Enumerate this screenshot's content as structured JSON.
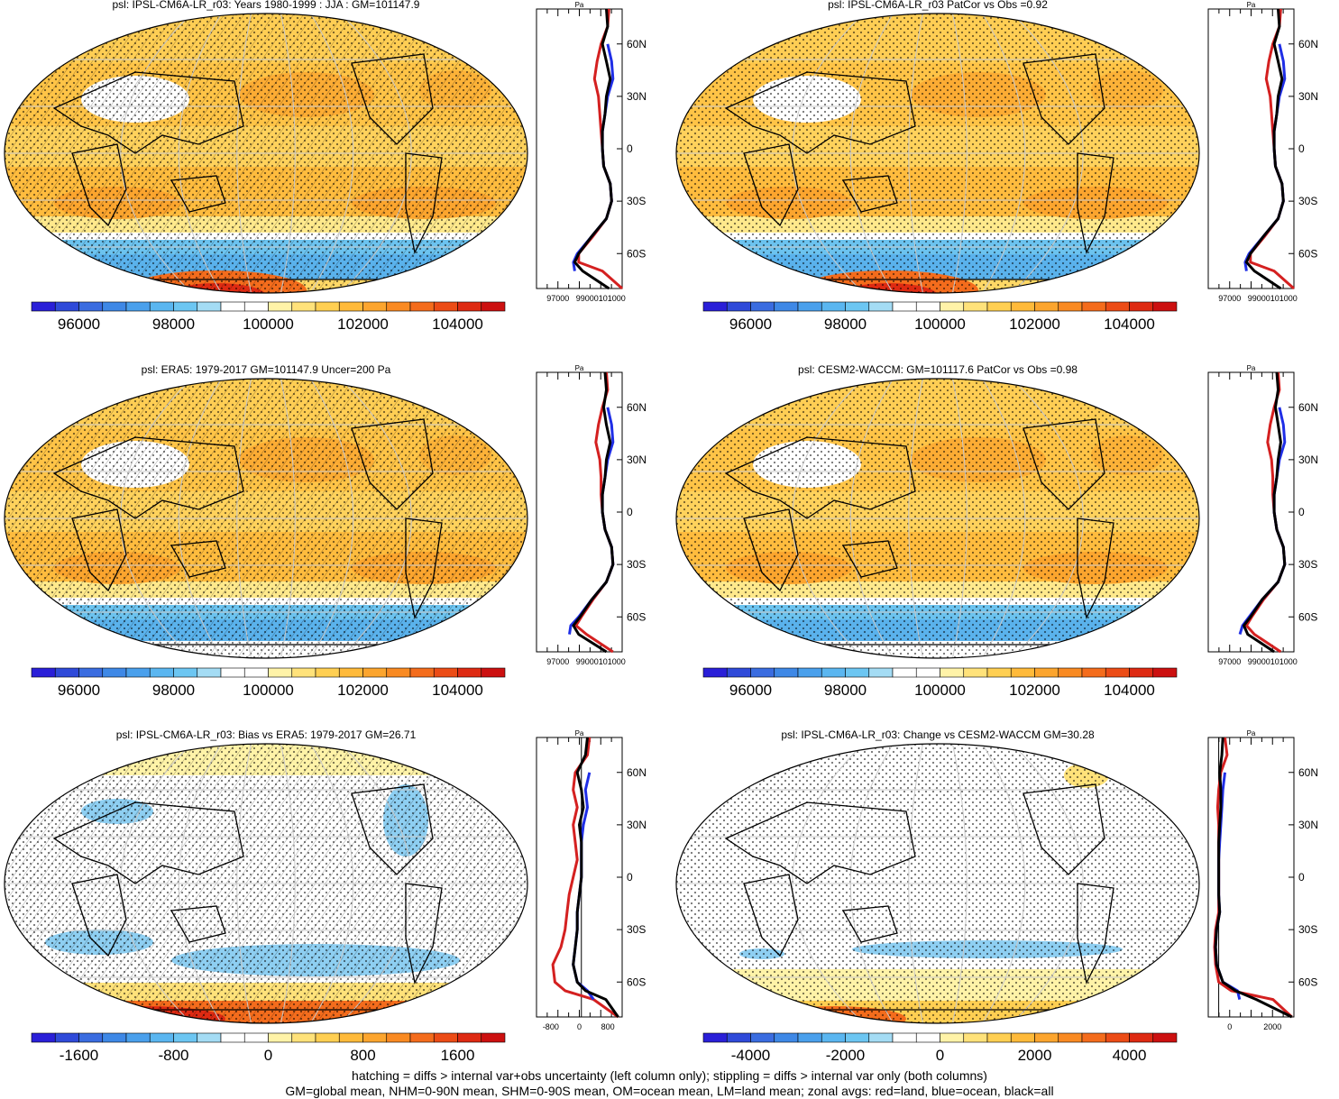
{
  "footer": {
    "line1": "hatching = diffs > internal var+obs uncertainty (left column only); stippling = diffs > internal var only (both columns)",
    "line2": "GM=global mean, NHM=0-90N mean, SHM=0-90S mean, OM=ocean mean, LM=land mean; zonal avgs: red=land, blue=ocean, black=all"
  },
  "panels": [
    {
      "title": "psl: IPSL-CM6A-LR_r03: Years 1980-1999 : JJA : GM=101147.9",
      "kind": "mean",
      "hatch": true,
      "side_unit": "Pa",
      "side_ticks": [
        "97000",
        "99000101000"
      ],
      "lat_labels": [
        "60N",
        "30N",
        "0",
        "30S",
        "60S"
      ],
      "cbar_labels": [
        "96000",
        "98000",
        "100000",
        "102000",
        "104000"
      ]
    },
    {
      "title": "psl: IPSL-CM6A-LR_r03 PatCor vs Obs =0.92",
      "kind": "mean",
      "hatch": false,
      "side_unit": "Pa",
      "side_ticks": [
        "97000",
        "99000101000"
      ],
      "lat_labels": [
        "60N",
        "30N",
        "0",
        "30S",
        "60S"
      ],
      "cbar_labels": [
        "96000",
        "98000",
        "100000",
        "102000",
        "104000"
      ]
    },
    {
      "title": "psl: ERA5: 1979-2017 GM=101147.9 Uncer=200 Pa",
      "kind": "mean",
      "hatch": true,
      "side_unit": "Pa",
      "side_ticks": [
        "97000",
        "99000101000"
      ],
      "lat_labels": [
        "60N",
        "30N",
        "0",
        "30S",
        "60S"
      ],
      "cbar_labels": [
        "96000",
        "98000",
        "100000",
        "102000",
        "104000"
      ]
    },
    {
      "title": "psl: CESM2-WACCM: GM=101117.6 PatCor vs Obs =0.98",
      "kind": "mean",
      "hatch": false,
      "side_unit": "Pa",
      "side_ticks": [
        "97000",
        "99000101000"
      ],
      "lat_labels": [
        "60N",
        "30N",
        "0",
        "30S",
        "60S"
      ],
      "cbar_labels": [
        "96000",
        "98000",
        "100000",
        "102000",
        "104000"
      ]
    },
    {
      "title": "psl: IPSL-CM6A-LR_r03: Bias vs ERA5: 1979-2017 GM=26.71",
      "kind": "bias",
      "hatch": true,
      "side_unit": "Pa",
      "side_ticks": [
        "-800",
        "0",
        "800"
      ],
      "lat_labels": [
        "60N",
        "30N",
        "0",
        "30S",
        "60S"
      ],
      "cbar_labels": [
        "-1600",
        "-800",
        "0",
        "800",
        "1600"
      ]
    },
    {
      "title": "psl: IPSL-CM6A-LR_r03: Change vs CESM2-WACCM GM=30.28",
      "kind": "change",
      "hatch": false,
      "side_unit": "Pa",
      "side_ticks": [
        "0",
        "2000"
      ],
      "lat_labels": [
        "60N",
        "30N",
        "0",
        "30S",
        "60S"
      ],
      "cbar_labels": [
        "-4000",
        "-2000",
        "0",
        "2000",
        "4000"
      ]
    }
  ],
  "colors": {
    "scale": [
      "#2a1fd8",
      "#2f4ad9",
      "#3a6ce0",
      "#3e88e6",
      "#4aa0ec",
      "#5ab6f0",
      "#6cc6f2",
      "#a4dcf4",
      "#ffffff",
      "#ffffff",
      "#fff3a8",
      "#ffe27a",
      "#ffcf52",
      "#ffba3a",
      "#fca52e",
      "#f98a22",
      "#f46c1c",
      "#ec4c16",
      "#de2a12",
      "#cc1010"
    ],
    "land": "#d42020",
    "ocean": "#1f2ee6",
    "all": "#000000"
  },
  "chart_data": [
    {
      "type": "heatmap",
      "title": "psl: IPSL-CM6A-LR_r03: Years 1980-1999 : JJA : GM=101147.9",
      "colorbar_range": [
        95000,
        105000
      ],
      "colorbar_ticks": [
        96000,
        98000,
        100000,
        102000,
        104000
      ],
      "zonal_mean": {
        "unit": "Pa",
        "xlim": [
          96000,
          102500
        ],
        "lat": [
          80,
          70,
          60,
          50,
          40,
          30,
          20,
          10,
          0,
          -10,
          -20,
          -30,
          -40,
          -50,
          -60,
          -65,
          -70,
          -80
        ],
        "all": [
          101300,
          101400,
          101000,
          101300,
          101600,
          101300,
          101200,
          101000,
          101000,
          101100,
          101600,
          101700,
          101300,
          100200,
          99200,
          98900,
          99500,
          101500
        ],
        "land": [
          101500,
          101400,
          100900,
          100600,
          100400,
          100700,
          100800,
          100900,
          101000,
          101100,
          101600,
          101700,
          101300,
          100300,
          99200,
          99200,
          101000,
          102500
        ],
        "ocean": [
          null,
          null,
          101400,
          101700,
          101800,
          101400,
          101200,
          101000,
          101000,
          101100,
          101600,
          101700,
          101300,
          100200,
          99100,
          98800,
          98900,
          null
        ]
      }
    },
    {
      "type": "heatmap",
      "title": "psl: IPSL-CM6A-LR_r03 PatCor vs Obs =0.92",
      "colorbar_range": [
        95000,
        105000
      ],
      "colorbar_ticks": [
        96000,
        98000,
        100000,
        102000,
        104000
      ],
      "zonal_mean": {
        "unit": "Pa",
        "xlim": [
          96000,
          102500
        ],
        "lat": [
          80,
          70,
          60,
          50,
          40,
          30,
          20,
          10,
          0,
          -10,
          -20,
          -30,
          -40,
          -50,
          -60,
          -65,
          -70,
          -80
        ],
        "all": [
          101300,
          101400,
          101000,
          101300,
          101600,
          101300,
          101200,
          101000,
          101000,
          101100,
          101600,
          101700,
          101300,
          100200,
          99200,
          98900,
          99500,
          101500
        ],
        "land": [
          101500,
          101400,
          100900,
          100600,
          100400,
          100700,
          100800,
          100900,
          101000,
          101100,
          101600,
          101700,
          101300,
          100300,
          99200,
          99200,
          101000,
          102500
        ],
        "ocean": [
          null,
          null,
          101400,
          101700,
          101800,
          101400,
          101200,
          101000,
          101000,
          101100,
          101600,
          101700,
          101300,
          100200,
          99100,
          98800,
          98900,
          null
        ]
      }
    },
    {
      "type": "heatmap",
      "title": "psl: ERA5: 1979-2017 GM=101147.9 Uncer=200 Pa",
      "colorbar_range": [
        95000,
        105000
      ],
      "colorbar_ticks": [
        96000,
        98000,
        100000,
        102000,
        104000
      ],
      "zonal_mean": {
        "unit": "Pa",
        "xlim": [
          96000,
          102500
        ],
        "lat": [
          80,
          70,
          60,
          50,
          40,
          30,
          20,
          10,
          0,
          -10,
          -20,
          -30,
          -40,
          -50,
          -60,
          -65,
          -70,
          -80
        ],
        "all": [
          101200,
          101300,
          101100,
          101300,
          101600,
          101300,
          101200,
          101000,
          101000,
          101200,
          101700,
          101800,
          101300,
          100200,
          99300,
          98800,
          99200,
          101300
        ],
        "land": [
          101300,
          101400,
          101000,
          100700,
          100500,
          100800,
          100900,
          100900,
          101000,
          101200,
          101700,
          101800,
          101300,
          100300,
          99400,
          99000,
          99800,
          101800
        ],
        "ocean": [
          null,
          null,
          101400,
          101700,
          101800,
          101400,
          101200,
          101000,
          101000,
          101200,
          101700,
          101800,
          101300,
          100200,
          99200,
          98600,
          98500,
          null
        ]
      }
    },
    {
      "type": "heatmap",
      "title": "psl: CESM2-WACCM: GM=101117.6 PatCor vs Obs =0.98",
      "colorbar_range": [
        95000,
        105000
      ],
      "colorbar_ticks": [
        96000,
        98000,
        100000,
        102000,
        104000
      ],
      "zonal_mean": {
        "unit": "Pa",
        "xlim": [
          96000,
          102500
        ],
        "lat": [
          80,
          70,
          60,
          50,
          40,
          30,
          20,
          10,
          0,
          -10,
          -20,
          -30,
          -40,
          -50,
          -60,
          -65,
          -70,
          -80
        ],
        "all": [
          101200,
          101300,
          101100,
          101300,
          101500,
          101300,
          101200,
          101000,
          101000,
          101200,
          101700,
          101800,
          101300,
          100100,
          99200,
          98700,
          99000,
          101000
        ],
        "land": [
          101300,
          101400,
          101000,
          100700,
          100500,
          100800,
          100900,
          100900,
          101000,
          101200,
          101700,
          101800,
          101300,
          100200,
          99300,
          98900,
          99500,
          101500
        ],
        "ocean": [
          null,
          null,
          101400,
          101700,
          101800,
          101400,
          101200,
          101000,
          101000,
          101200,
          101700,
          101800,
          101300,
          100100,
          99100,
          98600,
          98400,
          null
        ]
      }
    },
    {
      "type": "heatmap",
      "title": "psl: IPSL-CM6A-LR_r03: Bias vs ERA5: 1979-2017 GM=26.71",
      "colorbar_range": [
        -2400,
        2400
      ],
      "colorbar_ticks": [
        -1600,
        -800,
        0,
        800,
        1600
      ],
      "zonal_mean": {
        "unit": "Pa",
        "xlim": [
          -1100,
          1000
        ],
        "lat": [
          80,
          70,
          60,
          50,
          40,
          30,
          20,
          10,
          0,
          -10,
          -20,
          -30,
          -40,
          -50,
          -60,
          -65,
          -70,
          -80
        ],
        "all": [
          150,
          100,
          -100,
          0,
          50,
          -50,
          0,
          0,
          0,
          -50,
          -100,
          -100,
          -150,
          -200,
          -100,
          100,
          600,
          900
        ],
        "land": [
          200,
          150,
          -150,
          -200,
          -100,
          -200,
          -150,
          -100,
          -200,
          -300,
          -350,
          -400,
          -500,
          -700,
          -650,
          -400,
          300,
          900
        ],
        "ocean": [
          null,
          null,
          200,
          100,
          150,
          50,
          0,
          0,
          0,
          -50,
          -100,
          -100,
          -150,
          -200,
          -100,
          150,
          300,
          null
        ]
      }
    },
    {
      "type": "heatmap",
      "title": "psl: IPSL-CM6A-LR_r03: Change vs CESM2-WACCM GM=30.28",
      "colorbar_range": [
        -5600,
        5600
      ],
      "colorbar_ticks": [
        -4000,
        -2000,
        0,
        2000,
        4000
      ],
      "zonal_mean": {
        "unit": "Pa",
        "xlim": [
          -500,
          3600
        ],
        "lat": [
          80,
          70,
          60,
          50,
          40,
          30,
          20,
          10,
          0,
          -10,
          -20,
          -30,
          -40,
          -50,
          -60,
          -65,
          -70,
          -80
        ],
        "all": [
          200,
          150,
          50,
          100,
          100,
          50,
          0,
          0,
          0,
          0,
          50,
          -100,
          -150,
          -100,
          200,
          800,
          1800,
          3500
        ],
        "land": [
          300,
          400,
          100,
          0,
          -50,
          0,
          0,
          0,
          0,
          0,
          0,
          -150,
          -200,
          -150,
          0,
          600,
          2600,
          3500
        ],
        "ocean": [
          null,
          null,
          300,
          200,
          150,
          100,
          50,
          0,
          0,
          0,
          50,
          -100,
          -150,
          -100,
          200,
          900,
          1000,
          null
        ]
      }
    }
  ]
}
